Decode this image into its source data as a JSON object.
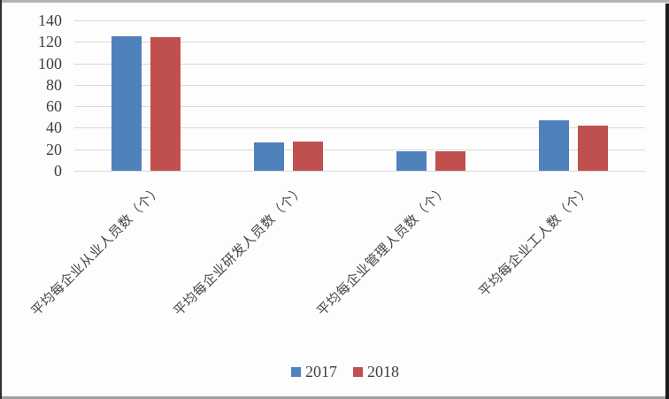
{
  "chart_data": {
    "type": "bar",
    "title": "",
    "xlabel": "",
    "ylabel": "",
    "categories": [
      "平均每企业从业人员数（个）",
      "平均每企业研发人员数（个）",
      "平均每企业管理人员数（个）",
      "平均每企业工人数（个）"
    ],
    "series": [
      {
        "name": "2017",
        "color": "#4F81BD",
        "values": [
          125,
          26,
          18,
          47
        ]
      },
      {
        "name": "2018",
        "color": "#C0504D",
        "values": [
          124,
          27,
          18,
          42
        ]
      }
    ],
    "ylim": [
      0,
      140
    ],
    "yticks": [
      0,
      20,
      40,
      60,
      80,
      100,
      120,
      140
    ],
    "grid": true,
    "legend_position": "bottom"
  },
  "style": {
    "gridline_color": "#d9d9d9",
    "axis_text_color": "#3f3f3f",
    "category_text_color": "#464646",
    "background": "#fdfdfd"
  }
}
